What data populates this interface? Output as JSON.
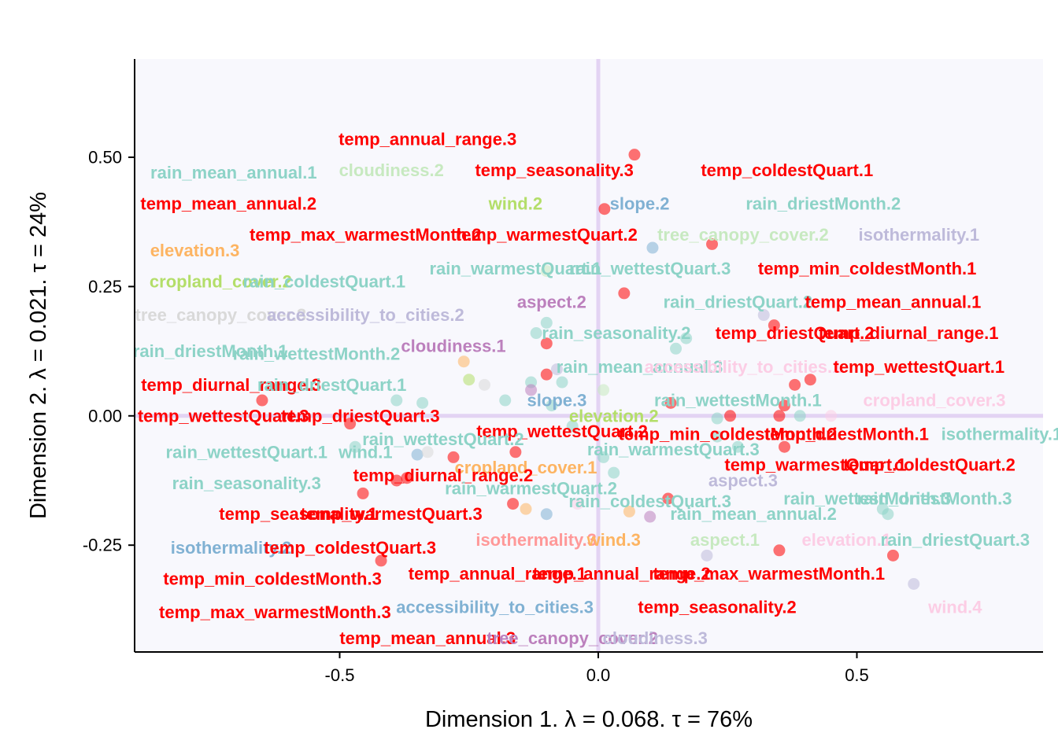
{
  "chart_data": {
    "type": "scatter",
    "title": "",
    "xlabel": "Dimension 1.   λ = 0.068.  τ = 76%",
    "ylabel": "Dimension 2.   λ = 0.021.  τ = 24%",
    "xlim": [
      -0.895,
      0.86
    ],
    "ylim": [
      -0.455,
      0.69
    ],
    "x_ticks": [
      -0.5,
      0.0,
      0.5
    ],
    "x_tick_labels": [
      "-0.5",
      "0.0",
      "0.5"
    ],
    "y_ticks": [
      -0.25,
      0.0,
      0.25,
      0.5
    ],
    "y_tick_labels": [
      "-0.25",
      "0.00",
      "0.25",
      "0.50"
    ],
    "grid": false,
    "legend": "none",
    "colors": {
      "panel_background": "#F8F8FD",
      "reference_lines": "#E3D3F3",
      "temp": "#FF0000",
      "rain": "#8DD3C7",
      "slope": "#80B1D3",
      "isothermality": "#BEBADA",
      "aspect": "#C7E9C0",
      "cloudiness": "#BC80BD",
      "wind": "#FCCDE5",
      "elevation": "#FDB462",
      "cropland_cover": "#B3DE69",
      "tree_canopy_cover": "#D9D9D9",
      "accessibility_to_cities": "#BEBADA"
    },
    "points": [
      {
        "x": 0.07,
        "y": 0.505,
        "color": "#FF0000"
      },
      {
        "x": 0.012,
        "y": 0.4,
        "color": "#FF0000"
      },
      {
        "x": 0.105,
        "y": 0.325,
        "color": "#80B1D3"
      },
      {
        "x": 0.22,
        "y": 0.332,
        "color": "#FF0000"
      },
      {
        "x": 0.05,
        "y": 0.237,
        "color": "#FF0000"
      },
      {
        "x": 0.32,
        "y": 0.195,
        "color": "#BEBADA"
      },
      {
        "x": 0.34,
        "y": 0.175,
        "color": "#FF0000"
      },
      {
        "x": -0.1,
        "y": 0.18,
        "color": "#8DD3C7"
      },
      {
        "x": -0.12,
        "y": 0.16,
        "color": "#8DD3C7"
      },
      {
        "x": -0.1,
        "y": 0.14,
        "color": "#FF0000"
      },
      {
        "x": -0.1,
        "y": 0.08,
        "color": "#FF0000"
      },
      {
        "x": -0.08,
        "y": 0.09,
        "color": "#BEBADA"
      },
      {
        "x": 0.15,
        "y": 0.13,
        "color": "#8DD3C7"
      },
      {
        "x": 0.17,
        "y": 0.15,
        "color": "#8DD3C7"
      },
      {
        "x": -0.1,
        "y": 0.28,
        "color": "#C7E9C0"
      },
      {
        "x": -0.26,
        "y": 0.105,
        "color": "#FDB462"
      },
      {
        "x": -0.25,
        "y": 0.07,
        "color": "#B3DE69"
      },
      {
        "x": -0.22,
        "y": 0.06,
        "color": "#D9D9D9"
      },
      {
        "x": -0.13,
        "y": 0.065,
        "color": "#8DD3C7"
      },
      {
        "x": -0.13,
        "y": 0.05,
        "color": "#BC80BD"
      },
      {
        "x": -0.07,
        "y": 0.065,
        "color": "#8DD3C7"
      },
      {
        "x": 0.01,
        "y": 0.05,
        "color": "#C7E9C0"
      },
      {
        "x": -0.18,
        "y": 0.03,
        "color": "#8DD3C7"
      },
      {
        "x": -0.09,
        "y": 0.02,
        "color": "#8DD3C7"
      },
      {
        "x": -0.05,
        "y": -0.02,
        "color": "#8DD3C7"
      },
      {
        "x": 0.14,
        "y": 0.025,
        "color": "#FF0000"
      },
      {
        "x": 0.23,
        "y": -0.005,
        "color": "#8DD3C7"
      },
      {
        "x": 0.255,
        "y": 0.0,
        "color": "#FF0000"
      },
      {
        "x": 0.35,
        "y": 0.0,
        "color": "#FF0000"
      },
      {
        "x": 0.36,
        "y": 0.02,
        "color": "#FF0000"
      },
      {
        "x": 0.39,
        "y": 0.0,
        "color": "#8DD3C7"
      },
      {
        "x": 0.38,
        "y": 0.06,
        "color": "#FF0000"
      },
      {
        "x": 0.41,
        "y": 0.07,
        "color": "#FF0000"
      },
      {
        "x": 0.45,
        "y": 0.0,
        "color": "#FCCDE5"
      },
      {
        "x": 0.36,
        "y": -0.06,
        "color": "#FF0000"
      },
      {
        "x": 0.23,
        "y": -0.04,
        "color": "#8DD3C7"
      },
      {
        "x": 0.27,
        "y": -0.06,
        "color": "#8DD3C7"
      },
      {
        "x": -0.65,
        "y": 0.03,
        "color": "#FF0000"
      },
      {
        "x": -0.48,
        "y": -0.015,
        "color": "#FF0000"
      },
      {
        "x": -0.34,
        "y": 0.025,
        "color": "#8DD3C7"
      },
      {
        "x": -0.39,
        "y": 0.03,
        "color": "#8DD3C7"
      },
      {
        "x": -0.47,
        "y": -0.06,
        "color": "#8DD3C7"
      },
      {
        "x": -0.35,
        "y": -0.075,
        "color": "#80B1D3"
      },
      {
        "x": -0.33,
        "y": -0.07,
        "color": "#D9D9D9"
      },
      {
        "x": -0.28,
        "y": -0.08,
        "color": "#FF0000"
      },
      {
        "x": -0.16,
        "y": -0.07,
        "color": "#FF0000"
      },
      {
        "x": -0.39,
        "y": -0.125,
        "color": "#FF0000"
      },
      {
        "x": -0.37,
        "y": -0.12,
        "color": "#FF0000"
      },
      {
        "x": -0.455,
        "y": -0.15,
        "color": "#FF0000"
      },
      {
        "x": -0.165,
        "y": -0.17,
        "color": "#FF0000"
      },
      {
        "x": -0.14,
        "y": -0.18,
        "color": "#FDB462"
      },
      {
        "x": -0.1,
        "y": -0.19,
        "color": "#80B1D3"
      },
      {
        "x": -0.04,
        "y": -0.17,
        "color": "#FCCDE5"
      },
      {
        "x": 0.06,
        "y": -0.185,
        "color": "#FDB462"
      },
      {
        "x": 0.1,
        "y": -0.195,
        "color": "#BC80BD"
      },
      {
        "x": 0.135,
        "y": -0.16,
        "color": "#FF0000"
      },
      {
        "x": 0.01,
        "y": -0.08,
        "color": "#8DD3C7"
      },
      {
        "x": 0.03,
        "y": -0.11,
        "color": "#8DD3C7"
      },
      {
        "x": 0.55,
        "y": -0.18,
        "color": "#8DD3C7"
      },
      {
        "x": 0.56,
        "y": -0.19,
        "color": "#8DD3C7"
      },
      {
        "x": 0.35,
        "y": -0.26,
        "color": "#FF0000"
      },
      {
        "x": 0.57,
        "y": -0.27,
        "color": "#FF0000"
      },
      {
        "x": 0.61,
        "y": -0.325,
        "color": "#BEBADA"
      },
      {
        "x": 0.21,
        "y": -0.27,
        "color": "#BEBADA"
      },
      {
        "x": -0.42,
        "y": -0.28,
        "color": "#FF0000"
      }
    ],
    "labels": [
      {
        "text": "temp_annual_range.3",
        "x": -0.33,
        "y": 0.535,
        "color": "#FF0000"
      },
      {
        "text": "rain_mean_annual.1",
        "x": -0.705,
        "y": 0.47,
        "color": "#8DD3C7"
      },
      {
        "text": "cloudiness.2",
        "x": -0.4,
        "y": 0.475,
        "color": "#C7E9C0"
      },
      {
        "text": "temp_seasonality.3",
        "x": -0.085,
        "y": 0.475,
        "color": "#FF0000"
      },
      {
        "text": "temp_coldestQuart.1",
        "x": 0.365,
        "y": 0.475,
        "color": "#FF0000"
      },
      {
        "text": "temp_mean_annual.2",
        "x": -0.715,
        "y": 0.41,
        "color": "#FF0000"
      },
      {
        "text": "wind.2",
        "x": -0.16,
        "y": 0.41,
        "color": "#B3DE69"
      },
      {
        "text": "slope.2",
        "x": 0.08,
        "y": 0.41,
        "color": "#80B1D3"
      },
      {
        "text": "rain_driestMonth.2",
        "x": 0.435,
        "y": 0.41,
        "color": "#8DD3C7"
      },
      {
        "text": "temp_max_warmestMonth.2",
        "x": -0.45,
        "y": 0.35,
        "color": "#FF0000"
      },
      {
        "text": "temp_warmestQuart.2",
        "x": -0.1,
        "y": 0.35,
        "color": "#FF0000"
      },
      {
        "text": "tree_canopy_cover.2",
        "x": 0.28,
        "y": 0.35,
        "color": "#C7E9C0"
      },
      {
        "text": "isothermality.1",
        "x": 0.62,
        "y": 0.35,
        "color": "#BEBADA"
      },
      {
        "text": "elevation.3",
        "x": -0.78,
        "y": 0.32,
        "color": "#FDB462"
      },
      {
        "text": "rain_warmestQuart.1",
        "x": -0.16,
        "y": 0.285,
        "color": "#8DD3C7"
      },
      {
        "text": "rain_wettestQuart.3",
        "x": 0.1,
        "y": 0.285,
        "color": "#8DD3C7"
      },
      {
        "text": "temp_min_coldestMonth.1",
        "x": 0.52,
        "y": 0.285,
        "color": "#FF0000"
      },
      {
        "text": "cropland_cover.2",
        "x": -0.73,
        "y": 0.26,
        "color": "#B3DE69"
      },
      {
        "text": "rain_coldestQuart.1",
        "x": -0.53,
        "y": 0.26,
        "color": "#8DD3C7"
      },
      {
        "text": "aspect.2",
        "x": -0.09,
        "y": 0.22,
        "color": "#BC80BD"
      },
      {
        "text": "rain_driestQuart.2",
        "x": 0.27,
        "y": 0.22,
        "color": "#8DD3C7"
      },
      {
        "text": "temp_mean_annual.1",
        "x": 0.57,
        "y": 0.22,
        "color": "#FF0000"
      },
      {
        "text": "tree_canopy_cover.3",
        "x": -0.73,
        "y": 0.195,
        "color": "#D9D9D9"
      },
      {
        "text": "accessibility_to_cities.2",
        "x": -0.45,
        "y": 0.195,
        "color": "#BEBADA"
      },
      {
        "text": "rain_seasonality.2",
        "x": 0.035,
        "y": 0.16,
        "color": "#8DD3C7"
      },
      {
        "text": "temp_driestQuart.2",
        "x": 0.38,
        "y": 0.16,
        "color": "#FF0000"
      },
      {
        "text": "temp_diurnal_range.1",
        "x": 0.6,
        "y": 0.16,
        "color": "#FF0000"
      },
      {
        "text": "cloudiness.1",
        "x": -0.28,
        "y": 0.135,
        "color": "#BC80BD"
      },
      {
        "text": "rain_driestMonth.1",
        "x": -0.75,
        "y": 0.125,
        "color": "#8DD3C7"
      },
      {
        "text": "rain_wettestMonth.2",
        "x": -0.545,
        "y": 0.12,
        "color": "#8DD3C7"
      },
      {
        "text": "rain_mean_annual.3",
        "x": 0.08,
        "y": 0.095,
        "color": "#8DD3C7"
      },
      {
        "text": "accessibility_to_cities.1",
        "x": 0.28,
        "y": 0.095,
        "color": "#FCCDE5"
      },
      {
        "text": "temp_wettestQuart.1",
        "x": 0.62,
        "y": 0.095,
        "color": "#FF0000"
      },
      {
        "text": "temp_diurnal_range.3",
        "x": -0.71,
        "y": 0.06,
        "color": "#FF0000"
      },
      {
        "text": "rain_driestQuart.1",
        "x": -0.515,
        "y": 0.06,
        "color": "#8DD3C7"
      },
      {
        "text": "slope.3",
        "x": -0.08,
        "y": 0.03,
        "color": "#80B1D3"
      },
      {
        "text": "rain_wettestMonth.1",
        "x": 0.27,
        "y": 0.03,
        "color": "#8DD3C7"
      },
      {
        "text": "cropland_cover.3",
        "x": 0.65,
        "y": 0.03,
        "color": "#FCCDE5"
      },
      {
        "text": "elevation.2",
        "x": 0.03,
        "y": 0.0,
        "color": "#B3DE69"
      },
      {
        "text": "temp_wettestQuart.3",
        "x": -0.725,
        "y": 0.0,
        "color": "#FF0000"
      },
      {
        "text": "temp_driestQuart.3",
        "x": -0.46,
        "y": 0.0,
        "color": "#FF0000"
      },
      {
        "text": "temp_wettestQuart.2",
        "x": -0.07,
        "y": -0.03,
        "color": "#FF0000"
      },
      {
        "text": "rain_wettestQuart.2",
        "x": -0.3,
        "y": -0.045,
        "color": "#8DD3C7"
      },
      {
        "text": "temp_min_coldestMonth.2",
        "x": 0.25,
        "y": -0.035,
        "color": "#FF0000"
      },
      {
        "text": "temp_driestMonth.1",
        "x": 0.48,
        "y": -0.035,
        "color": "#FF0000"
      },
      {
        "text": "isothermality.1",
        "x": 0.78,
        "y": -0.035,
        "color": "#8DD3C7"
      },
      {
        "text": "rain_wettestQuart.1",
        "x": -0.68,
        "y": -0.07,
        "color": "#8DD3C7"
      },
      {
        "text": "wind.1",
        "x": -0.45,
        "y": -0.07,
        "color": "#8DD3C7"
      },
      {
        "text": "rain_warmestQuart.3",
        "x": 0.145,
        "y": -0.065,
        "color": "#8DD3C7"
      },
      {
        "text": "temp_warmestQuart.1",
        "x": 0.42,
        "y": -0.095,
        "color": "#FF0000"
      },
      {
        "text": "temp_coldestQuart.2",
        "x": 0.64,
        "y": -0.095,
        "color": "#FF0000"
      },
      {
        "text": "cropland_cover.1",
        "x": -0.14,
        "y": -0.1,
        "color": "#FDB462"
      },
      {
        "text": "rain_seasonality.3",
        "x": -0.68,
        "y": -0.13,
        "color": "#8DD3C7"
      },
      {
        "text": "temp_diurnal_range.2",
        "x": -0.3,
        "y": -0.115,
        "color": "#FF0000"
      },
      {
        "text": "rain_warmestQuart.2",
        "x": -0.13,
        "y": -0.14,
        "color": "#8DD3C7"
      },
      {
        "text": "aspect.3",
        "x": 0.28,
        "y": -0.125,
        "color": "#BEBADA"
      },
      {
        "text": "rain_coldestQuart.3",
        "x": 0.1,
        "y": -0.165,
        "color": "#8DD3C7"
      },
      {
        "text": "rain_wettestMonth.3",
        "x": 0.52,
        "y": -0.16,
        "color": "#8DD3C7"
      },
      {
        "text": "rain_driestMonth.3",
        "x": 0.65,
        "y": -0.16,
        "color": "#8DD3C7"
      },
      {
        "text": "temp_seasonality.1",
        "x": -0.58,
        "y": -0.19,
        "color": "#FF0000"
      },
      {
        "text": "temp_warmestQuart.3",
        "x": -0.4,
        "y": -0.19,
        "color": "#FF0000"
      },
      {
        "text": "rain_mean_annual.2",
        "x": 0.3,
        "y": -0.19,
        "color": "#8DD3C7"
      },
      {
        "text": "isothermality.2",
        "x": -0.71,
        "y": -0.255,
        "color": "#80B1D3"
      },
      {
        "text": "temp_coldestQuart.3",
        "x": -0.48,
        "y": -0.255,
        "color": "#FF0000"
      },
      {
        "text": "isothermality.3",
        "x": -0.12,
        "y": -0.24,
        "color": "#FF9999"
      },
      {
        "text": "wind.3",
        "x": 0.03,
        "y": -0.24,
        "color": "#FDB462"
      },
      {
        "text": "aspect.1",
        "x": 0.245,
        "y": -0.24,
        "color": "#C7E9C0"
      },
      {
        "text": "elevation.1",
        "x": 0.48,
        "y": -0.24,
        "color": "#FCCDE5"
      },
      {
        "text": "rain_driestQuart.3",
        "x": 0.69,
        "y": -0.24,
        "color": "#8DD3C7"
      },
      {
        "text": "temp_min_coldestMonth.3",
        "x": -0.63,
        "y": -0.315,
        "color": "#FF0000"
      },
      {
        "text": "temp_annual_range.1",
        "x": -0.195,
        "y": -0.305,
        "color": "#FF0000"
      },
      {
        "text": "temp_annual_range.2",
        "x": 0.045,
        "y": -0.305,
        "color": "#FF0000"
      },
      {
        "text": "temp_max_warmestMonth.1",
        "x": 0.33,
        "y": -0.305,
        "color": "#FF0000"
      },
      {
        "text": "temp_max_warmestMonth.3",
        "x": -0.625,
        "y": -0.38,
        "color": "#FF0000"
      },
      {
        "text": "accessibility_to_cities.3",
        "x": -0.2,
        "y": -0.37,
        "color": "#80B1D3"
      },
      {
        "text": "temp_seasonality.2",
        "x": 0.23,
        "y": -0.37,
        "color": "#FF0000"
      },
      {
        "text": "wind.4",
        "x": 0.69,
        "y": -0.37,
        "color": "#FCCDE5"
      },
      {
        "text": "temp_mean_annual.3",
        "x": -0.33,
        "y": -0.43,
        "color": "#FF0000"
      },
      {
        "text": "tree_canopy_cover.2",
        "x": -0.05,
        "y": -0.43,
        "color": "#BC80BD"
      },
      {
        "text": "cloudiness.3",
        "x": 0.11,
        "y": -0.43,
        "color": "#BEBADA"
      }
    ]
  }
}
